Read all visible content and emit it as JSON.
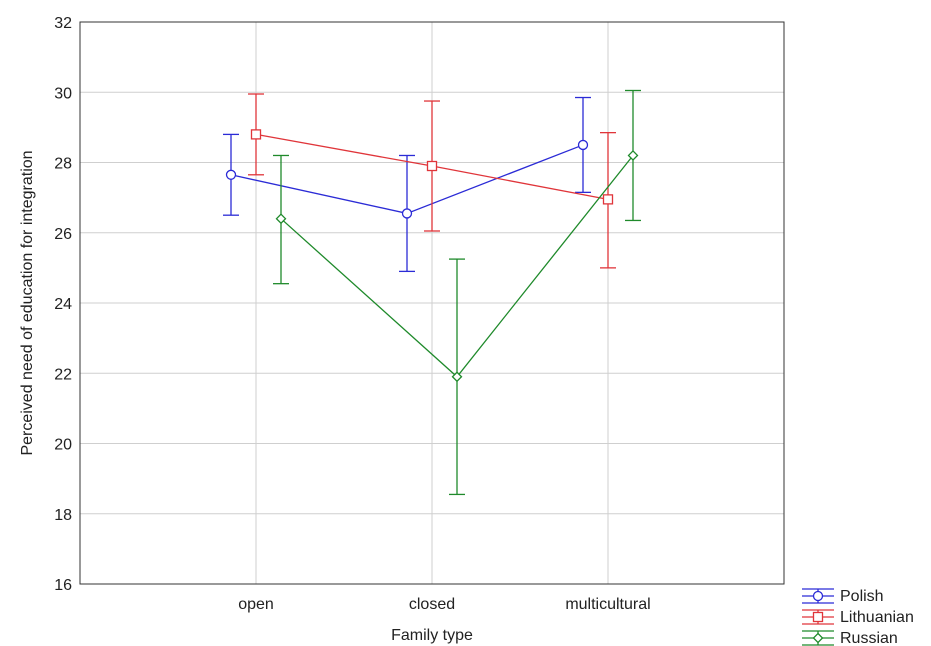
{
  "chart_data": {
    "type": "line",
    "title": "",
    "xlabel": "Family type",
    "ylabel": "Perceived need of education for integration",
    "categories": [
      "open",
      "closed",
      "multicultural"
    ],
    "ylim": [
      16,
      32
    ],
    "yticks": [
      16,
      18,
      20,
      22,
      24,
      26,
      28,
      30,
      32
    ],
    "grid": true,
    "legend_position": "bottom-right outside",
    "error_bars": true,
    "series": [
      {
        "name": "Polish",
        "color": "#2b2bd6",
        "marker": "circle",
        "values": [
          27.65,
          26.55,
          28.5
        ],
        "lower": [
          26.5,
          24.9,
          27.15
        ],
        "upper": [
          28.8,
          28.2,
          29.85
        ]
      },
      {
        "name": "Lithuanian",
        "color": "#e0353a",
        "marker": "square",
        "values": [
          28.8,
          27.9,
          26.95
        ],
        "lower": [
          27.65,
          26.05,
          25.0
        ],
        "upper": [
          29.95,
          29.75,
          28.85
        ]
      },
      {
        "name": "Russian",
        "color": "#1f8a2b",
        "marker": "diamond",
        "values": [
          26.4,
          21.9,
          28.2
        ],
        "lower": [
          24.55,
          18.55,
          26.35
        ],
        "upper": [
          28.2,
          25.25,
          30.05
        ]
      }
    ]
  }
}
